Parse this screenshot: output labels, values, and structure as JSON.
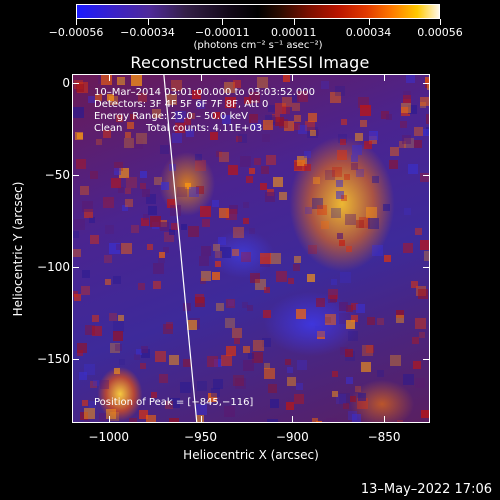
{
  "colorbar": {
    "tick_labels": [
      "-0.00056",
      "-0.00034",
      "-0.00011",
      "0.00011",
      "0.00034",
      "0.00056"
    ],
    "units": "(photons cm⁻² s⁻¹ asec⁻²)",
    "colors": [
      "#1a1aff",
      "#4f2a9a",
      "#000000",
      "#b81400",
      "#ff7a00",
      "#ffc900",
      "#fff8e8"
    ]
  },
  "chart_data": {
    "type": "heatmap",
    "title": "Reconstructed RHESSI Image",
    "xlabel": "Heliocentric X (arcsec)",
    "ylabel": "Heliocentric Y (arcsec)",
    "xlim": [
      -1020,
      -825
    ],
    "ylim": [
      -185,
      5
    ],
    "x_ticks": [
      -1000,
      -950,
      -900,
      -850
    ],
    "x_tick_labels": [
      "−1000",
      "−950",
      "−900",
      "−850"
    ],
    "y_ticks": [
      0,
      -50,
      -100,
      -150
    ],
    "y_tick_labels": [
      "0",
      "−50",
      "−100",
      "−150"
    ],
    "colorbar_range": [
      -0.00056,
      0.00056
    ],
    "peak_position": [
      -845,
      -116
    ],
    "limb_line": [
      [
        -970,
        5
      ],
      [
        -952,
        -185
      ]
    ]
  },
  "annotations": {
    "time": "10–Mar–2014 03:01:00.000 to 03:03:52.000",
    "detectors": "Detectors: 3F 4F 5F 6F 7F 8F, Att 0",
    "energy": "Energy Range: 25.0 – 50.0 keV",
    "method": "Clean",
    "counts": "Total counts: 4.11E+03",
    "peak": "Position of Peak = [−845,−116]"
  },
  "footer": {
    "date": "13–May–2022 17:06"
  }
}
